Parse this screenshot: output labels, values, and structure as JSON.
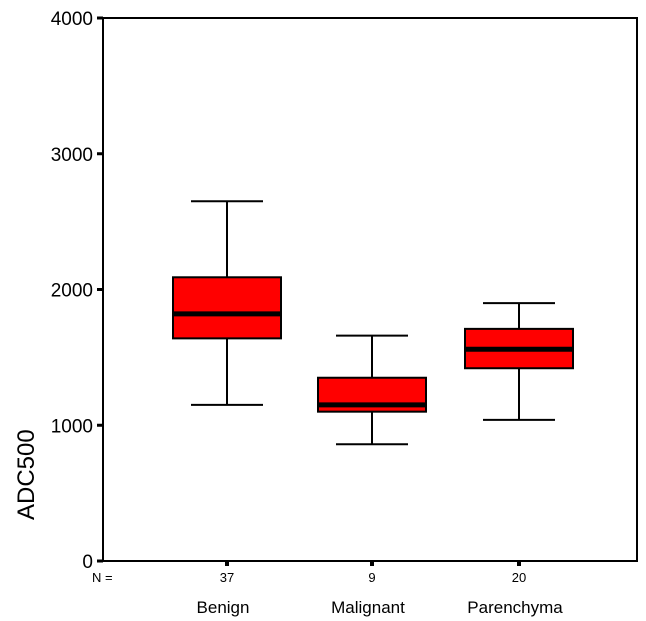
{
  "chart_data": {
    "type": "box",
    "title": "",
    "xlabel": "",
    "ylabel": "ADC500",
    "ylim": [
      0,
      4000
    ],
    "yticks": [
      0,
      1000,
      2000,
      3000,
      4000
    ],
    "n_prefix": "N =",
    "box_color": "#ff0000",
    "categories": [
      "Benign",
      "Malignant",
      "Parenchyma"
    ],
    "series": [
      {
        "name": "Benign",
        "n": "37",
        "min": 1150,
        "q1": 1640,
        "median": 1820,
        "q3": 2090,
        "max": 2650
      },
      {
        "name": "Malignant",
        "n": "9",
        "min": 860,
        "q1": 1100,
        "median": 1150,
        "q3": 1350,
        "max": 1660
      },
      {
        "name": "Parenchyma",
        "n": "20",
        "min": 1040,
        "q1": 1420,
        "median": 1560,
        "q3": 1710,
        "max": 1900
      }
    ]
  }
}
